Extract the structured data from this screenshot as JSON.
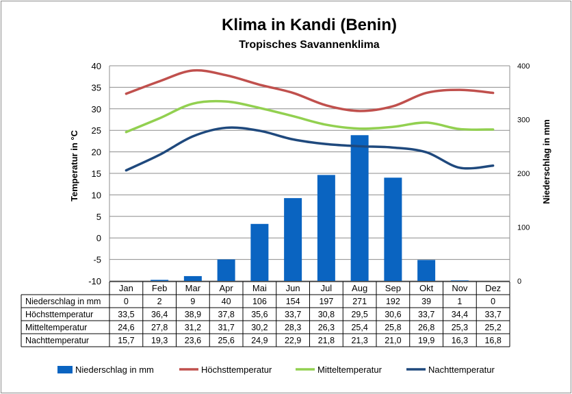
{
  "chart_data": {
    "type": "bar+line",
    "title": "Klima in Kandi (Benin)",
    "subtitle": "Tropisches Savannenklima",
    "ylabel_left": "Temperatur in °C",
    "ylabel_right": "Niederschlag in mm",
    "ylim_left": [
      -10,
      40
    ],
    "yticks_left": [
      "40",
      "35",
      "30",
      "25",
      "20",
      "15",
      "10",
      "5",
      "0",
      "-5",
      "-10"
    ],
    "ylim_right": [
      0,
      400
    ],
    "yticks_right": [
      "400",
      "300",
      "200",
      "100",
      "0"
    ],
    "grid": true,
    "legend_position": "bottom",
    "categories": [
      "Jan",
      "Feb",
      "Mar",
      "Apr",
      "Mai",
      "Jun",
      "Jul",
      "Aug",
      "Sep",
      "Okt",
      "Nov",
      "Dez"
    ],
    "series": [
      {
        "name": "Niederschlag in mm",
        "type": "bar",
        "axis": "right",
        "color": "#0a64c1",
        "values": [
          0,
          2,
          9,
          40,
          106,
          154,
          197,
          271,
          192,
          39,
          1,
          0
        ],
        "labels": [
          "0",
          "2",
          "9",
          "40",
          "106",
          "154",
          "197",
          "271",
          "192",
          "39",
          "1",
          "0"
        ]
      },
      {
        "name": "Höchsttemperatur",
        "type": "line",
        "axis": "left",
        "color": "#c0504d",
        "values": [
          33.5,
          36.4,
          38.9,
          37.8,
          35.6,
          33.7,
          30.8,
          29.5,
          30.6,
          33.7,
          34.4,
          33.7
        ],
        "labels": [
          "33,5",
          "36,4",
          "38,9",
          "37,8",
          "35,6",
          "33,7",
          "30,8",
          "29,5",
          "30,6",
          "33,7",
          "34,4",
          "33,7"
        ]
      },
      {
        "name": "Mitteltemperatur",
        "type": "line",
        "axis": "left",
        "color": "#92d050",
        "values": [
          24.6,
          27.8,
          31.2,
          31.7,
          30.2,
          28.3,
          26.3,
          25.4,
          25.8,
          26.8,
          25.3,
          25.2
        ],
        "labels": [
          "24,6",
          "27,8",
          "31,2",
          "31,7",
          "30,2",
          "28,3",
          "26,3",
          "25,4",
          "25,8",
          "26,8",
          "25,3",
          "25,2"
        ]
      },
      {
        "name": "Nachttemperatur",
        "type": "line",
        "axis": "left",
        "color": "#1f497d",
        "values": [
          15.7,
          19.3,
          23.6,
          25.6,
          24.9,
          22.9,
          21.8,
          21.3,
          21.0,
          19.9,
          16.3,
          16.8
        ],
        "labels": [
          "15,7",
          "19,3",
          "23,6",
          "25,6",
          "24,9",
          "22,9",
          "21,8",
          "21,3",
          "21,0",
          "19,9",
          "16,3",
          "16,8"
        ]
      }
    ]
  }
}
